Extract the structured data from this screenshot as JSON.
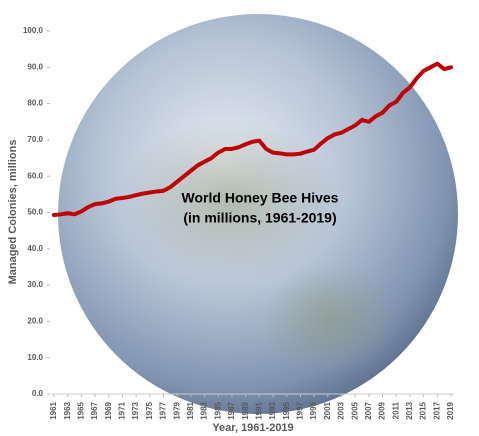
{
  "chart_data": {
    "type": "line",
    "title": "World Honey Bee Hives",
    "subtitle": "(in millions, 1961-2019)",
    "y_label": "Managed Colonies, millions",
    "x_label": "Year,  1961-2019",
    "color": "#c00000",
    "x": [
      1961,
      1962,
      1963,
      1964,
      1965,
      1966,
      1967,
      1968,
      1969,
      1970,
      1971,
      1972,
      1973,
      1974,
      1975,
      1976,
      1977,
      1978,
      1979,
      1980,
      1981,
      1982,
      1983,
      1984,
      1985,
      1986,
      1987,
      1988,
      1989,
      1990,
      1991,
      1992,
      1993,
      1994,
      1995,
      1996,
      1997,
      1998,
      1999,
      2000,
      2001,
      2002,
      2003,
      2004,
      2005,
      2006,
      2007,
      2008,
      2009,
      2010,
      2011,
      2012,
      2013,
      2014,
      2015,
      2016,
      2017,
      2018,
      2019
    ],
    "values": [
      49.3,
      49.5,
      49.8,
      49.5,
      50.3,
      51.5,
      52.3,
      52.5,
      53.0,
      53.8,
      54.0,
      54.3,
      54.8,
      55.2,
      55.5,
      55.8,
      56.0,
      57.0,
      58.5,
      60.0,
      61.5,
      63.0,
      64.0,
      65.0,
      66.5,
      67.5,
      67.5,
      68.0,
      68.8,
      69.5,
      69.8,
      67.5,
      66.5,
      66.3,
      66.0,
      66.0,
      66.2,
      66.8,
      67.3,
      69.0,
      70.5,
      71.5,
      72.0,
      73.0,
      74.0,
      75.5,
      75.0,
      76.5,
      77.5,
      79.5,
      80.5,
      83.0,
      84.5,
      87.0,
      89.0,
      90.0,
      91.0,
      89.5,
      90.0
    ],
    "xlim": [
      1961,
      2019
    ],
    "xticks": [
      1961,
      1963,
      1965,
      1967,
      1969,
      1971,
      1973,
      1975,
      1977,
      1979,
      1981,
      1983,
      1985,
      1987,
      1989,
      1991,
      1993,
      1995,
      1997,
      1999,
      2001,
      2003,
      2005,
      2007,
      2009,
      2011,
      2013,
      2015,
      2017,
      2019
    ],
    "ylim": [
      0,
      100
    ],
    "yticks": [
      {
        "value": 0,
        "label": "0.0"
      },
      {
        "value": 10,
        "label": "10.0"
      },
      {
        "value": 20,
        "label": "20.0"
      },
      {
        "value": 30,
        "label": "30.0"
      },
      {
        "value": 40,
        "label": "40.0"
      },
      {
        "value": 50,
        "label": "50.0"
      },
      {
        "value": 60,
        "label": "60.0"
      },
      {
        "value": 70,
        "label": "70.0"
      },
      {
        "value": 80,
        "label": "80.0"
      },
      {
        "value": 90,
        "label": "90.0"
      },
      {
        "value": 100,
        "label": "100.0"
      }
    ]
  }
}
